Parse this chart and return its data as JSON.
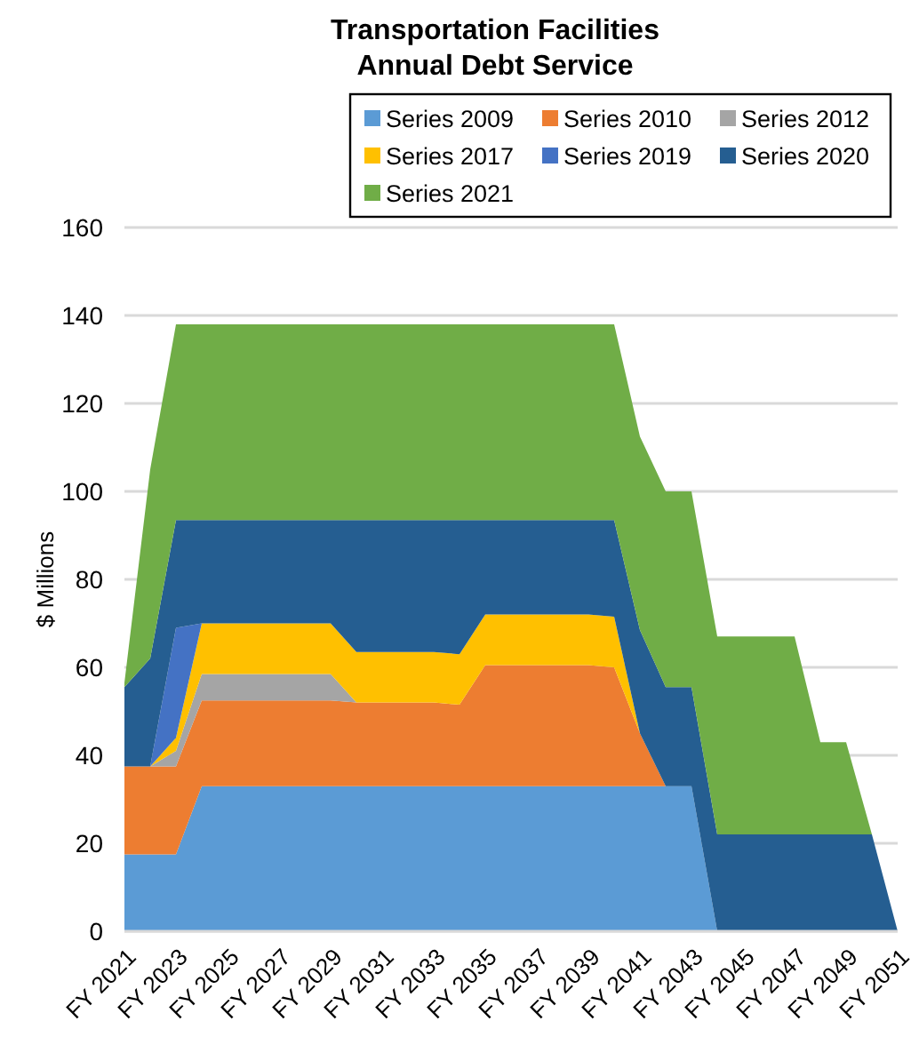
{
  "chart_data": {
    "type": "area",
    "stacked": true,
    "title": "Transportation Facilities\nAnnual Debt Service",
    "ylabel": "$ Millions",
    "categories": [
      "FY 2021",
      null,
      "FY 2023",
      null,
      "FY 2025",
      null,
      "FY 2027",
      null,
      "FY 2029",
      null,
      "FY 2031",
      null,
      "FY 2033",
      null,
      "FY 2035",
      null,
      "FY 2037",
      null,
      "FY 2039",
      null,
      "FY 2041",
      null,
      "FY 2043",
      null,
      "FY 2045",
      null,
      "FY 2047",
      null,
      "FY 2049",
      null,
      "FY 2051"
    ],
    "ylim": [
      0,
      160
    ],
    "yticks": [
      0,
      20,
      40,
      60,
      80,
      100,
      120,
      140,
      160
    ],
    "grid": "y",
    "legend": "top right",
    "series": [
      {
        "name": "Series 2009",
        "color": "#5b9bd5",
        "values": [
          17.5,
          17.5,
          17.5,
          33,
          33,
          33,
          33,
          33,
          33,
          33,
          33,
          33,
          33,
          33,
          33,
          33,
          33,
          33,
          33,
          33,
          33,
          33,
          33,
          0,
          null,
          null,
          null,
          null,
          null,
          null,
          null
        ]
      },
      {
        "name": "Series 2010",
        "color": "#ed7d31",
        "values": [
          20,
          20,
          20,
          19.5,
          19.5,
          19.5,
          19.5,
          19.5,
          19.5,
          19,
          19,
          19,
          19,
          18.5,
          27.5,
          27.5,
          27.5,
          27.5,
          27.5,
          27,
          12,
          0,
          null,
          null,
          null,
          null,
          null,
          null,
          null,
          null,
          null
        ]
      },
      {
        "name": "Series 2012",
        "color": "#a5a5a5",
        "values": [
          null,
          0,
          3.5,
          6,
          6,
          6,
          6,
          6,
          6,
          0,
          null,
          null,
          null,
          null,
          null,
          null,
          null,
          null,
          null,
          null,
          null,
          null,
          null,
          null,
          null,
          null,
          null,
          null,
          null,
          null,
          null
        ]
      },
      {
        "name": "Series 2017",
        "color": "#ffc000",
        "values": [
          null,
          0,
          3,
          11.5,
          11.5,
          11.5,
          11.5,
          11.5,
          11.5,
          11.5,
          11.5,
          11.5,
          11.5,
          11.5,
          11.5,
          11.5,
          11.5,
          11.5,
          11.5,
          11.5,
          0,
          null,
          null,
          null,
          null,
          null,
          null,
          null,
          null,
          null,
          null
        ]
      },
      {
        "name": "Series 2019",
        "color": "#4472c4",
        "values": [
          null,
          0,
          25,
          0,
          null,
          null,
          null,
          null,
          null,
          null,
          null,
          null,
          null,
          null,
          null,
          null,
          null,
          null,
          null,
          null,
          null,
          null,
          null,
          null,
          null,
          null,
          null,
          null,
          null,
          null,
          null
        ]
      },
      {
        "name": "Series 2020",
        "color": "#255e91",
        "values": [
          18,
          24.5,
          24.5,
          23.5,
          23.5,
          23.5,
          23.5,
          23.5,
          23.5,
          30,
          30,
          30,
          30,
          30.5,
          21.5,
          21.5,
          21.5,
          21.5,
          21.5,
          22,
          23.5,
          22.5,
          22.5,
          22,
          22,
          22,
          22,
          22,
          22,
          22,
          0
        ]
      },
      {
        "name": "Series 2021",
        "color": "#70ad47",
        "values": [
          1,
          43,
          44.5,
          44.5,
          44.5,
          44.5,
          44.5,
          44.5,
          44.5,
          44.5,
          44.5,
          44.5,
          44.5,
          44.5,
          44.5,
          44.5,
          44.5,
          44.5,
          44.5,
          44.5,
          44,
          44.5,
          44.5,
          45,
          45,
          45,
          45,
          21,
          21,
          0,
          null
        ]
      }
    ]
  }
}
